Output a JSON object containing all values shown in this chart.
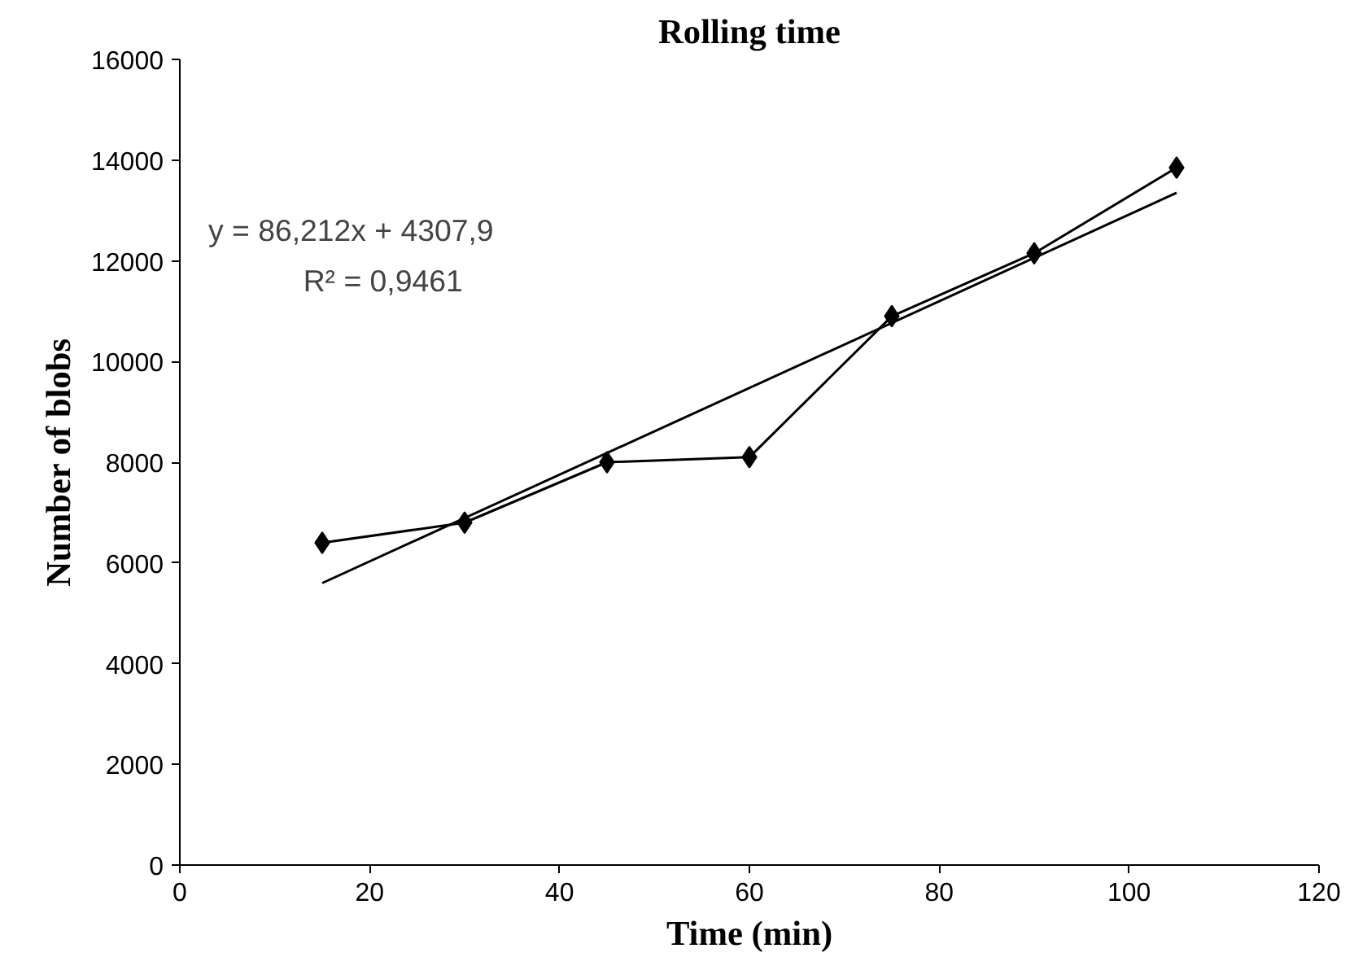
{
  "chart_data": {
    "type": "line",
    "title": "Rolling time",
    "xlabel": "Time (min)",
    "ylabel": "Number of blobs",
    "x": [
      15,
      30,
      45,
      60,
      75,
      90,
      105
    ],
    "series": [
      {
        "color": "#000000",
        "values": [
          6400,
          6800,
          8000,
          8100,
          10900,
          12150,
          13850
        ],
        "marker": "diamond"
      },
      {
        "type": "line",
        "color": "#000000",
        "x": [
          15,
          105
        ],
        "values": [
          5600,
          13350
        ],
        "marker": "none"
      }
    ],
    "xlim": [
      0,
      120
    ],
    "xticks": [
      0,
      20,
      40,
      60,
      80,
      100,
      120
    ],
    "ylim": [
      0,
      16000
    ],
    "yticks": [
      0,
      2000,
      4000,
      6000,
      8000,
      10000,
      12000,
      14000,
      16000
    ],
    "grid": false,
    "annotations": [
      "y = 86,212x + 4307,9",
      "R² = 0,9461"
    ]
  }
}
